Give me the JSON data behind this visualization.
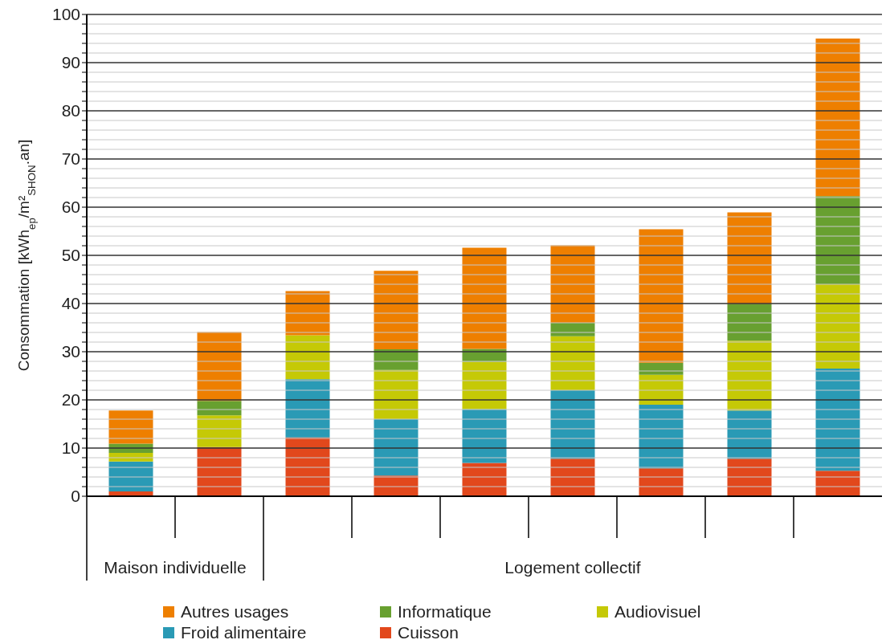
{
  "chart_data": {
    "type": "bar",
    "stacked": true,
    "ylabel": "Consommation  [kWh$_{ep}$/m²$_{SHON}$.an]",
    "categories": [
      null,
      null,
      null,
      null,
      null,
      null,
      null,
      null,
      null
    ],
    "series": [
      {
        "name": "Cuisson",
        "color": "#e2481c",
        "values": [
          1.0,
          10.2,
          12.2,
          4.3,
          6.9,
          7.8,
          5.8,
          7.8,
          5.3
        ]
      },
      {
        "name": "Froid alimentaire",
        "color": "#2a9ab5",
        "values": [
          6.2,
          0,
          12.1,
          11.7,
          11.2,
          14.2,
          13.2,
          10.0,
          21.2
        ]
      },
      {
        "name": "Audiovisuel",
        "color": "#c5c906",
        "values": [
          1.8,
          6.6,
          9.1,
          10.2,
          9.8,
          11.2,
          6.2,
          14.5,
          17.5
        ]
      },
      {
        "name": "Informatique",
        "color": "#68a030",
        "values": [
          1.9,
          3.0,
          0,
          4.3,
          2.7,
          2.8,
          2.5,
          7.6,
          18.3
        ]
      },
      {
        "name": "Autres usages",
        "color": "#ee7f00",
        "values": [
          6.9,
          14.3,
          9.2,
          16.3,
          21.0,
          16.1,
          27.7,
          19.0,
          32.7
        ]
      }
    ],
    "annotations": [
      "Maison individuelle",
      "Logement collectif"
    ],
    "ylim": [
      0,
      100
    ],
    "yticks": [
      0,
      {
        "value": 2,
        "label": null
      },
      {
        "value": 4,
        "label": null
      },
      {
        "value": 6,
        "label": null
      },
      {
        "value": 8,
        "label": null
      },
      10,
      {
        "value": 12,
        "label": null
      },
      {
        "value": 14,
        "label": null
      },
      {
        "value": 16,
        "label": null
      },
      {
        "value": 18,
        "label": null
      },
      20,
      {
        "value": 22,
        "label": null
      },
      {
        "value": 24,
        "label": null
      },
      {
        "value": 26,
        "label": null
      },
      {
        "value": 28,
        "label": null
      },
      30,
      {
        "value": 32,
        "label": null
      },
      {
        "value": 34,
        "label": null
      },
      {
        "value": 36,
        "label": null
      },
      {
        "value": 38,
        "label": null
      },
      40,
      {
        "value": 42,
        "label": null
      },
      {
        "value": 44,
        "label": null
      },
      {
        "value": 46,
        "label": null
      },
      {
        "value": 48,
        "label": null
      },
      50,
      {
        "value": 52,
        "label": null
      },
      {
        "value": 54,
        "label": null
      },
      {
        "value": 56,
        "label": null
      },
      {
        "value": 58,
        "label": null
      },
      60,
      {
        "value": 62,
        "label": null
      },
      {
        "value": 64,
        "label": null
      },
      {
        "value": 66,
        "label": null
      },
      {
        "value": 68,
        "label": null
      },
      70,
      {
        "value": 72,
        "label": null
      },
      {
        "value": 74,
        "label": null
      },
      {
        "value": 76,
        "label": null
      },
      {
        "value": 78,
        "label": null
      },
      80,
      {
        "value": 82,
        "label": null
      },
      {
        "value": 84,
        "label": null
      },
      {
        "value": 86,
        "label": null
      },
      {
        "value": 88,
        "label": null
      },
      90,
      {
        "value": 92,
        "label": null
      },
      {
        "value": 94,
        "label": null
      },
      {
        "value": 96,
        "label": null
      },
      {
        "value": 98,
        "label": null
      },
      100
    ],
    "grid": "y",
    "legend": "bottom"
  }
}
